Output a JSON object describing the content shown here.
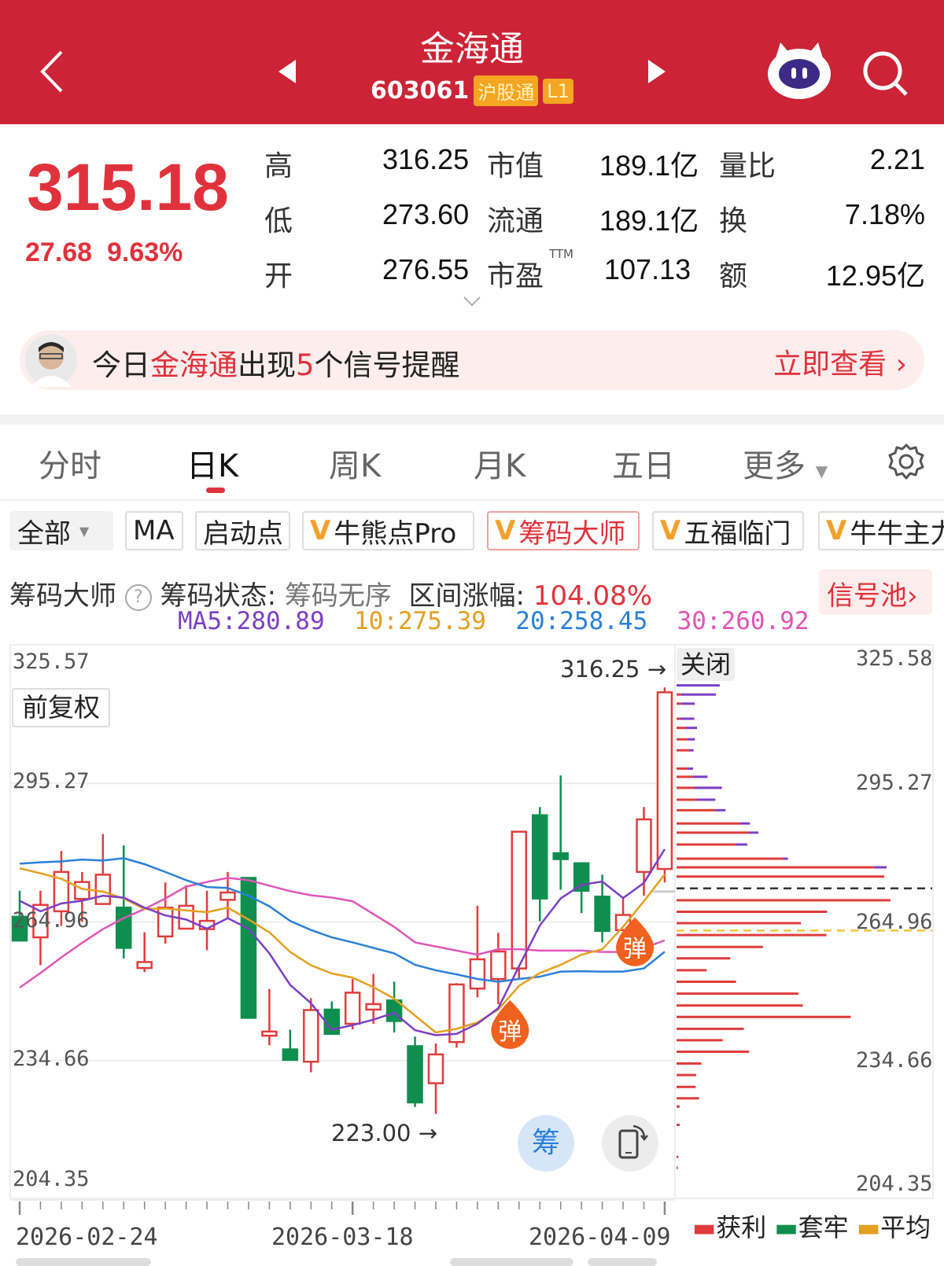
{
  "header": {
    "title": "金海通",
    "code": "603061",
    "tags": [
      "沪股通",
      "L1"
    ],
    "icons": [
      "back-chevron-icon",
      "prev-stock-icon",
      "next-stock-icon",
      "robot-assistant-icon",
      "search-icon"
    ]
  },
  "quote": {
    "price": "315.18",
    "change": "27.68",
    "change_pct": "9.63%",
    "rows": [
      {
        "l1": "高",
        "v1": "316.25",
        "l2": "市值",
        "v2": "189.1亿",
        "l3": "量比",
        "v3": "2.21"
      },
      {
        "l1": "低",
        "v1": "273.60",
        "l2": "流通",
        "v2": "189.1亿",
        "l3": "换",
        "v3": "7.18%"
      },
      {
        "l1": "开",
        "v1": "276.55",
        "l2": "市盈",
        "v2": "107.13",
        "l3": "额",
        "v3": "12.95亿"
      }
    ],
    "ttm": "TTM",
    "colors": {
      "up": "#e0323c",
      "down": "#1e9a4d"
    }
  },
  "banner": {
    "pre": "今日",
    "name": "金海通",
    "mid": "出现",
    "count": "5",
    "post": "个信号提醒",
    "action": "立即查看"
  },
  "tabs": [
    {
      "label": "分时"
    },
    {
      "label": "日K",
      "active": true
    },
    {
      "label": "周K"
    },
    {
      "label": "月K"
    },
    {
      "label": "五日"
    },
    {
      "label": "更多"
    }
  ],
  "indicators": {
    "all": "全部",
    "items": [
      "MA",
      "启动点",
      "牛熊点Pro",
      "筹码大师",
      "五福临门",
      "牛牛主力"
    ],
    "active": "筹码大师"
  },
  "info": {
    "name": "筹码大师",
    "status_label": "筹码状态:",
    "status": "筹码无序",
    "range_label": "区间涨幅:",
    "range": "104.08%",
    "pool": "信号池"
  },
  "ma": {
    "ma5": "MA5:280.89",
    "ma10": "10:275.39",
    "ma20": "20:258.45",
    "ma30": "30:260.92",
    "colors": {
      "ma5": "#7b3fc4",
      "ma10": "#e4a020",
      "ma20": "#2a7fd8",
      "ma30": "#e055b8"
    }
  },
  "chart": {
    "left_top": "325.57",
    "left_labels": [
      "295.27",
      "264.96",
      "234.66",
      "204.35"
    ],
    "right_labels": [
      "325.58",
      "295.27",
      "264.96",
      "234.66",
      "204.35"
    ],
    "adjust": "前复权",
    "high_mark": "316.25 →",
    "low_mark": "223.00 →",
    "close_btn": "关闭",
    "signal": "弹",
    "chip_btn": "筹",
    "dates": [
      "2026-02-24",
      "2026-03-18",
      "2026-04-09"
    ],
    "legend": [
      {
        "label": "获利",
        "color": "#e03c3c"
      },
      {
        "label": "套牢",
        "color": "#0f8f4f"
      },
      {
        "label": "平均",
        "color": "#e4a020"
      }
    ]
  },
  "chart_data": {
    "type": "candlestick",
    "ylim": [
      204.35,
      325.57
    ],
    "ohlc": [
      [
        266.1,
        271.8,
        260.8,
        260.9
      ],
      [
        261.6,
        271.8,
        255.5,
        268.7
      ],
      [
        267.3,
        280.5,
        264.1,
        275.9
      ],
      [
        270.0,
        275.9,
        265.0,
        273.7
      ],
      [
        268.9,
        284.2,
        268.7,
        275.3
      ],
      [
        268.1,
        281.7,
        257.0,
        259.3
      ],
      [
        254.9,
        262.7,
        254.0,
        256.2
      ],
      [
        261.8,
        273.6,
        260.2,
        268.1
      ],
      [
        263.5,
        273.0,
        263.5,
        268.5
      ],
      [
        263.4,
        271.8,
        258.8,
        265.2
      ],
      [
        269.8,
        275.9,
        265.8,
        271.4
      ],
      [
        274.6,
        274.6,
        244.0,
        244.0
      ],
      [
        240.1,
        250.3,
        238.0,
        241.0
      ],
      [
        237.1,
        241.4,
        234.8,
        234.8
      ],
      [
        234.4,
        248.3,
        232.1,
        245.7
      ],
      [
        245.8,
        247.6,
        240.3,
        240.5
      ],
      [
        242.7,
        252.5,
        241.5,
        249.5
      ],
      [
        245.8,
        253.6,
        242.7,
        247.0
      ],
      [
        247.8,
        251.9,
        240.8,
        243.3
      ],
      [
        237.8,
        239.9,
        224.5,
        225.5
      ],
      [
        229.7,
        238.4,
        223.0,
        236.0
      ],
      [
        238.7,
        251.6,
        237.5,
        251.3
      ],
      [
        250.4,
        268.5,
        248.5,
        256.8
      ],
      [
        252.5,
        262.6,
        247.0,
        258.5
      ],
      [
        254.8,
        284.7,
        252.5,
        284.7
      ],
      [
        288.3,
        290.1,
        265.1,
        270.1
      ],
      [
        280.0,
        297.0,
        272.0,
        278.7
      ],
      [
        277.8,
        277.8,
        266.9,
        271.8
      ],
      [
        270.5,
        275.3,
        260.5,
        263.0
      ],
      [
        263.2,
        270.1,
        263.2,
        266.5
      ],
      [
        275.9,
        290.1,
        270.7,
        287.4
      ],
      [
        276.55,
        316.25,
        273.6,
        315.18
      ]
    ],
    "ma5": [
      269.6,
      267.3,
      269.0,
      269.6,
      270.7,
      270.3,
      268.1,
      266.4,
      265.5,
      263.5,
      265.8,
      263.5,
      258.1,
      251.2,
      247.2,
      241.4,
      242.4,
      243.6,
      245.1,
      241.3,
      240.2,
      240.5,
      242.7,
      246.1,
      255.3,
      264.2,
      270.1,
      273.1,
      273.8,
      270.2,
      273.5,
      280.89
    ],
    "ma10": [
      276.7,
      275.6,
      274.4,
      272.2,
      271.6,
      270.1,
      267.8,
      267.9,
      267.5,
      267.1,
      268.1,
      265.5,
      262.7,
      258.4,
      255.5,
      253.7,
      252.8,
      250.7,
      248.2,
      244.5,
      240.8,
      241.6,
      243.0,
      245.8,
      251.0,
      253.8,
      255.6,
      257.8,
      259.0,
      263.9,
      269.5,
      275.39
    ],
    "ma20": [
      277.7,
      278.0,
      278.2,
      278.6,
      278.4,
      278.9,
      277.6,
      275.9,
      274.1,
      272.6,
      272.4,
      270.7,
      268.4,
      265.2,
      263.2,
      261.6,
      260.5,
      259.3,
      258.1,
      255.6,
      254.4,
      253.5,
      252.5,
      251.9,
      252.5,
      253.0,
      254.1,
      254.2,
      254.1,
      254.1,
      254.8,
      258.45
    ],
    "ma30": [
      250.6,
      253.8,
      257.2,
      260.4,
      263.4,
      265.8,
      267.8,
      270.1,
      272.7,
      273.7,
      274.6,
      274.1,
      272.9,
      271.7,
      270.8,
      270.3,
      269.5,
      266.7,
      263.9,
      260.5,
      259.6,
      258.7,
      257.8,
      259.0,
      259.0,
      258.7,
      258.7,
      258.7,
      258.4,
      258.4,
      259.3,
      260.92
    ],
    "signals": [
      {
        "index": 23,
        "label": "弹"
      },
      {
        "index": 29,
        "label": "弹"
      }
    ],
    "chips": [
      [
        316.7,
        0,
        16.5
      ],
      [
        314.7,
        1.7,
        13.3
      ],
      [
        312.7,
        1.7,
        5.3
      ],
      [
        309.4,
        1.5,
        5.3
      ],
      [
        307.4,
        3.5,
        4.3
      ],
      [
        304.9,
        4.2,
        2.8
      ],
      [
        302.5,
        4.8,
        1.7
      ],
      [
        298.5,
        4.3,
        2.0
      ],
      [
        296.7,
        6.3,
        5.5
      ],
      [
        294.3,
        6.8,
        10.5
      ],
      [
        291.7,
        7.8,
        7.0
      ],
      [
        289.4,
        14.7,
        4.0
      ],
      [
        286.5,
        24.2,
        3.8
      ],
      [
        284.5,
        27.5,
        3.7
      ],
      [
        281.9,
        22.7,
        4.3
      ],
      [
        278.8,
        40.5,
        2.0
      ],
      [
        276.9,
        75.3,
        4.9
      ],
      [
        274.9,
        79.3,
        0
      ],
      [
        269.7,
        81.7,
        0
      ],
      [
        267.2,
        57.5,
        0
      ],
      [
        264.7,
        47.5,
        0
      ],
      [
        262.1,
        57.2,
        0
      ],
      [
        259.5,
        33.0,
        0
      ],
      [
        257.0,
        20.5,
        0
      ],
      [
        254.4,
        11.5,
        0
      ],
      [
        251.9,
        22.7,
        0
      ],
      [
        249.3,
        46.5,
        0
      ],
      [
        246.7,
        48.2,
        0
      ],
      [
        244.2,
        66.5,
        0
      ],
      [
        241.6,
        25.7,
        0
      ],
      [
        239.1,
        17.6,
        0
      ],
      [
        236.6,
        27.7,
        0
      ],
      [
        234.0,
        9.5,
        0
      ],
      [
        231.5,
        7.5,
        0
      ],
      [
        228.9,
        7.3,
        0
      ],
      [
        226.4,
        8.6,
        0
      ],
      [
        224.6,
        1.2,
        0
      ],
      [
        220.6,
        1.2,
        0
      ],
      [
        213.6,
        0.7,
        0
      ],
      [
        211.2,
        0.5,
        0
      ]
    ],
    "chip_columns": [
      "price",
      "profit_volume",
      "other_volume"
    ],
    "ref_lines": {
      "black_dashed": 272.3,
      "average": 263.1
    }
  }
}
